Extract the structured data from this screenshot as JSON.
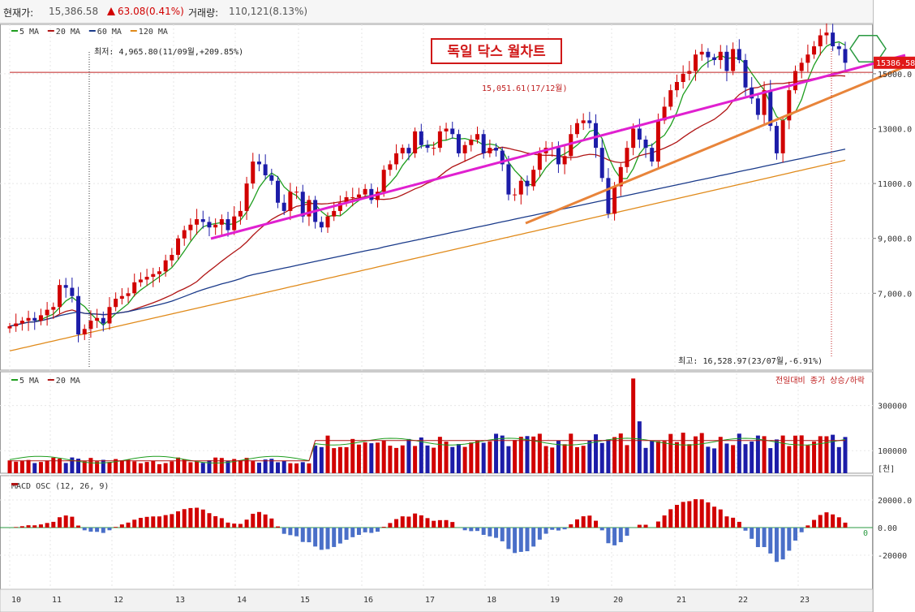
{
  "header": {
    "price_label": "현재가:",
    "price_value": "15,386.58",
    "change_value": "63.08(0.41%)",
    "volume_label": "거래량:",
    "volume_value": "110,121(8.13%)"
  },
  "colors": {
    "up": "#d10000",
    "down": "#1c1ca8",
    "ma5": "#1f9e1f",
    "ma20": "#b01515",
    "ma60": "#1a3a8a",
    "ma120": "#e08a1a",
    "trend_pink": "#e020d0",
    "trend_orange": "#e8843a",
    "hex_icon": "#2a9a40"
  },
  "chart_data": [
    {
      "type": "candlestick",
      "title": "독일 닥스 월차트",
      "legend": [
        {
          "name": "5 MA",
          "color": "#1f9e1f"
        },
        {
          "name": "20 MA",
          "color": "#b01515"
        },
        {
          "name": "60 MA",
          "color": "#1a3a8a"
        },
        {
          "name": "120 MA",
          "color": "#e08a1a"
        }
      ],
      "y_ticks": [
        "15000.0",
        "13000.0",
        "11000.0",
        "9,000.0",
        "7,000.0"
      ],
      "x_ticks": [
        "10",
        "11",
        "12",
        "13",
        "14",
        "15",
        "16",
        "17",
        "18",
        "19",
        "20",
        "21",
        "22",
        "23"
      ],
      "current_price_label": "15386.58",
      "annotations": {
        "low": "최저: 4,965.80(11/09월,+209.85%)",
        "high": "최고: 16,528.97(23/07월,-6.91%)",
        "hline": "15,051.61(17/12월)"
      },
      "ylim": [
        4200,
        16800
      ],
      "grid": true,
      "series_close_approx": [
        5800,
        5900,
        6000,
        6100,
        6000,
        6200,
        6400,
        6500,
        7300,
        7200,
        6900,
        5500,
        5700,
        6000,
        6100,
        5900,
        6500,
        6800,
        6900,
        7000,
        7400,
        7500,
        7600,
        7700,
        7800,
        8200,
        8400,
        9000,
        9300,
        9500,
        9700,
        9600,
        9400,
        9500,
        9700,
        9300,
        9800,
        10000,
        11000,
        11800,
        11700,
        11300,
        11100,
        10300,
        10000,
        10700,
        10700,
        9800,
        10400,
        9600,
        9400,
        9800,
        10000,
        10300,
        10500,
        10500,
        10600,
        10800,
        10400,
        10700,
        11500,
        11700,
        12100,
        12300,
        12100,
        12900,
        12400,
        12300,
        12300,
        12900,
        13000,
        12800,
        12100,
        12400,
        12600,
        12800,
        12100,
        12300,
        12200,
        11700,
        10600,
        10600,
        11100,
        10900,
        11500,
        12100,
        12300,
        12300,
        11700,
        12000,
        12800,
        13200,
        13300,
        13200,
        12300,
        11200,
        9900,
        10900,
        11600,
        12300,
        13000,
        12600,
        12300,
        11800,
        13300,
        13800,
        14400,
        14700,
        15000,
        15100,
        15700,
        15800,
        15600,
        15500,
        15800,
        15100,
        15900,
        15500,
        14500,
        14100,
        13500,
        14400,
        13100,
        12100,
        13300,
        14400,
        15100,
        15400,
        15700,
        16000,
        16400,
        16500,
        16000,
        15900,
        15400
      ],
      "points_shown": "approximately 170 monthly candles from 2010 to 2023"
    },
    {
      "type": "bar",
      "title": "",
      "legend": [
        {
          "name": "5 MA",
          "color": "#1f9e1f"
        },
        {
          "name": "20 MA",
          "color": "#b01515"
        }
      ],
      "right_label": "전일대비 종가 상승/하락",
      "y_ticks": [
        "300000",
        "100000"
      ],
      "unit": "[천]"
    },
    {
      "type": "bar",
      "title": "MACD OSC (12, 26, 9)",
      "y_ticks": [
        "20000.0",
        "0.00",
        "-20000"
      ],
      "zero_label": "0"
    }
  ]
}
